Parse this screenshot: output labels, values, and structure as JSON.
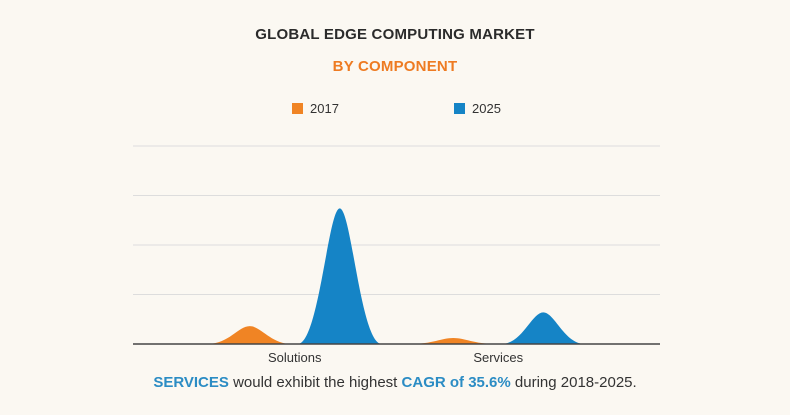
{
  "colors": {
    "s2017": "#f08424",
    "s2025": "#1584c6",
    "grid": "#dddddd",
    "axis": "#444444"
  },
  "chart_data": {
    "type": "area",
    "title": "GLOBAL EDGE COMPUTING MARKET",
    "subtitle": "BY COMPONENT",
    "categories": [
      "Solutions",
      "Services"
    ],
    "series": [
      {
        "name": "2017",
        "values": [
          18,
          6
        ]
      },
      {
        "name": "2025",
        "values": [
          137,
          32
        ]
      }
    ],
    "ylim": [
      0,
      200
    ],
    "grid": true,
    "legend": "top-center"
  },
  "footnote": {
    "segment": "SERVICES",
    "text1": " would exhibit the highest ",
    "cagr": "CAGR of 35.6%",
    "text2": " during 2018-2025."
  }
}
